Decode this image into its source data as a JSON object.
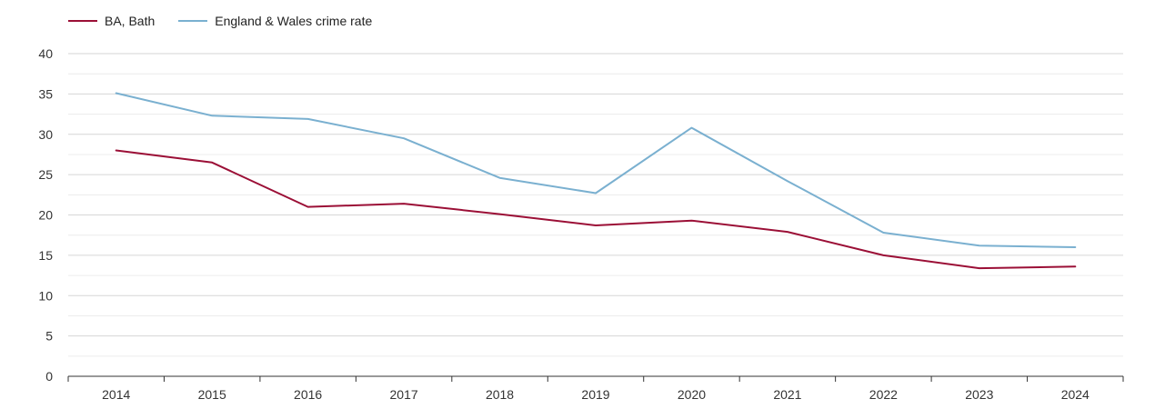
{
  "chart_data": {
    "type": "line",
    "title": "",
    "xlabel": "",
    "ylabel": "",
    "x": [
      "2014",
      "2015",
      "2016",
      "2017",
      "2018",
      "2019",
      "2020",
      "2021",
      "2022",
      "2023",
      "2024"
    ],
    "ylim": [
      0,
      40
    ],
    "yticks": [
      "0",
      "5",
      "10",
      "15",
      "20",
      "25",
      "30",
      "35",
      "40"
    ],
    "grid": true,
    "legend_position": "top-left",
    "series": [
      {
        "name": "BA, Bath",
        "color": "#9b0f36",
        "values": [
          28.0,
          26.5,
          21.0,
          21.4,
          20.1,
          18.7,
          19.3,
          17.9,
          15.0,
          13.4,
          13.6
        ]
      },
      {
        "name": "England & Wales crime rate",
        "color": "#7ab0d0",
        "values": [
          35.1,
          32.3,
          31.9,
          29.5,
          24.6,
          22.7,
          30.8,
          24.2,
          17.8,
          16.2,
          16.0
        ]
      }
    ]
  }
}
